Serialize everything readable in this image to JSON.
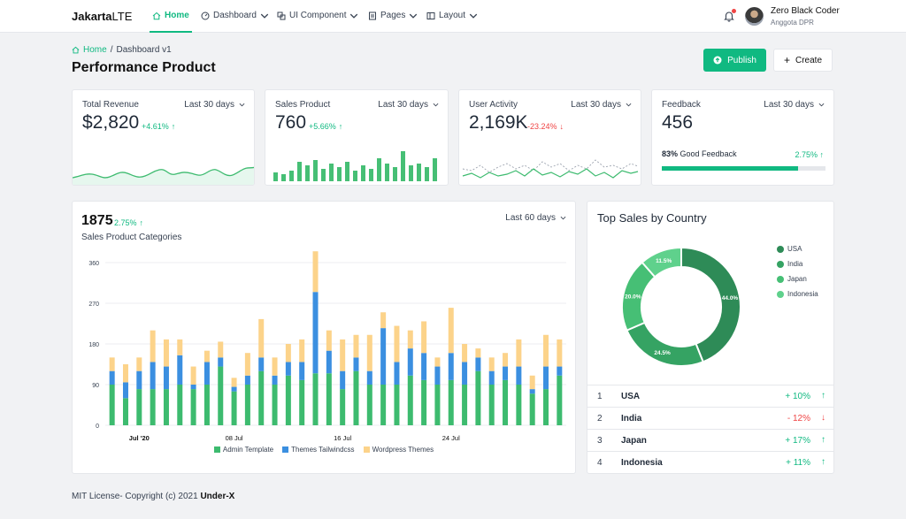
{
  "brand": {
    "bold": "Jakarta",
    "light": "LTE"
  },
  "nav": {
    "items": [
      {
        "label": "Home",
        "icon": "home-icon",
        "active": true,
        "dropdown": false
      },
      {
        "label": "Dashboard",
        "icon": "dashboard-icon",
        "active": false,
        "dropdown": true
      },
      {
        "label": "UI Component",
        "icon": "component-icon",
        "active": false,
        "dropdown": true
      },
      {
        "label": "Pages",
        "icon": "pages-icon",
        "active": false,
        "dropdown": true
      },
      {
        "label": "Layout",
        "icon": "layout-icon",
        "active": false,
        "dropdown": true
      }
    ]
  },
  "user": {
    "name": "Zero Black Coder",
    "role": "Anggota DPR"
  },
  "breadcrumb": {
    "home": "Home",
    "separator": "/",
    "current": "Dashboard v1"
  },
  "page_title": "Performance Product",
  "buttons": {
    "publish": "Publish",
    "create": "Create"
  },
  "stats": [
    {
      "label": "Total Revenue",
      "period": "Last 30 days",
      "value": "$2,820",
      "change": "+4.61%",
      "direction": "up"
    },
    {
      "label": "Sales Product",
      "period": "Last 30 days",
      "value": "760",
      "change": "+5.66%",
      "direction": "up"
    },
    {
      "label": "User Activity",
      "period": "Last 30 days",
      "value": "2,169K",
      "change": "-23.24%",
      "direction": "down"
    },
    {
      "label": "Feedback",
      "period": "Last 30 days",
      "value": "456"
    }
  ],
  "feedback": {
    "percent_label": "83%",
    "text": "Good Feedback",
    "change": "2.75%",
    "fill_fraction": 0.83
  },
  "sales_chart": {
    "total": "1875",
    "change": "2.75%",
    "subtitle": "Sales Product Categories",
    "period": "Last 60 days"
  },
  "chart_data": {
    "type": "bar",
    "stacked": true,
    "yticks": [
      0,
      90,
      180,
      270,
      360
    ],
    "ylim": [
      0,
      360
    ],
    "xticks": [
      {
        "index": 2,
        "label": "Jul '20"
      },
      {
        "index": 9,
        "label": "08 Jul"
      },
      {
        "index": 17,
        "label": "16 Jul"
      },
      {
        "index": 25,
        "label": "24 Jul"
      }
    ],
    "series": [
      {
        "name": "Admin Template",
        "color": "#3dbb6f",
        "values": [
          90,
          60,
          80,
          80,
          80,
          90,
          80,
          90,
          130,
          75,
          90,
          120,
          90,
          110,
          100,
          115,
          115,
          80,
          120,
          90,
          90,
          90,
          110,
          100,
          90,
          100,
          90,
          120,
          90,
          100,
          90,
          70,
          80,
          110
        ]
      },
      {
        "name": "Themes Tailwindcss",
        "color": "#3b8fe0",
        "values": [
          30,
          35,
          40,
          60,
          50,
          65,
          10,
          50,
          20,
          10,
          20,
          30,
          20,
          30,
          40,
          180,
          50,
          40,
          30,
          30,
          125,
          50,
          60,
          60,
          40,
          60,
          50,
          30,
          30,
          30,
          40,
          10,
          50,
          20
        ]
      },
      {
        "name": "Wordpress Themes",
        "color": "#fcd38a",
        "values": [
          30,
          40,
          30,
          70,
          60,
          35,
          40,
          25,
          35,
          20,
          50,
          85,
          40,
          40,
          50,
          90,
          45,
          70,
          50,
          80,
          35,
          80,
          40,
          70,
          20,
          100,
          40,
          20,
          30,
          30,
          60,
          30,
          70,
          60
        ]
      }
    ]
  },
  "country": {
    "title": "Top Sales by Country",
    "segments": [
      {
        "name": "USA",
        "value": 44.0,
        "label": "44.0%",
        "color": "#2e8b57"
      },
      {
        "name": "India",
        "value": 24.5,
        "label": "24.5%",
        "color": "#35a363"
      },
      {
        "name": "Japan",
        "value": 20.0,
        "label": "20.0%",
        "color": "#46bf75"
      },
      {
        "name": "Indonesia",
        "value": 11.5,
        "label": "11.5%",
        "color": "#5fd18c"
      }
    ],
    "rows": [
      {
        "rank": "1",
        "name": "USA",
        "change": "+ 10%",
        "direction": "up"
      },
      {
        "rank": "2",
        "name": "India",
        "change": "- 12%",
        "direction": "down"
      },
      {
        "rank": "3",
        "name": "Japan",
        "change": "+ 17%",
        "direction": "up"
      },
      {
        "rank": "4",
        "name": "Indonesia",
        "change": "+ 11%",
        "direction": "up"
      }
    ]
  },
  "footer": {
    "text": "MIT License- Copyright (c) 2021",
    "author": "Under-X"
  }
}
